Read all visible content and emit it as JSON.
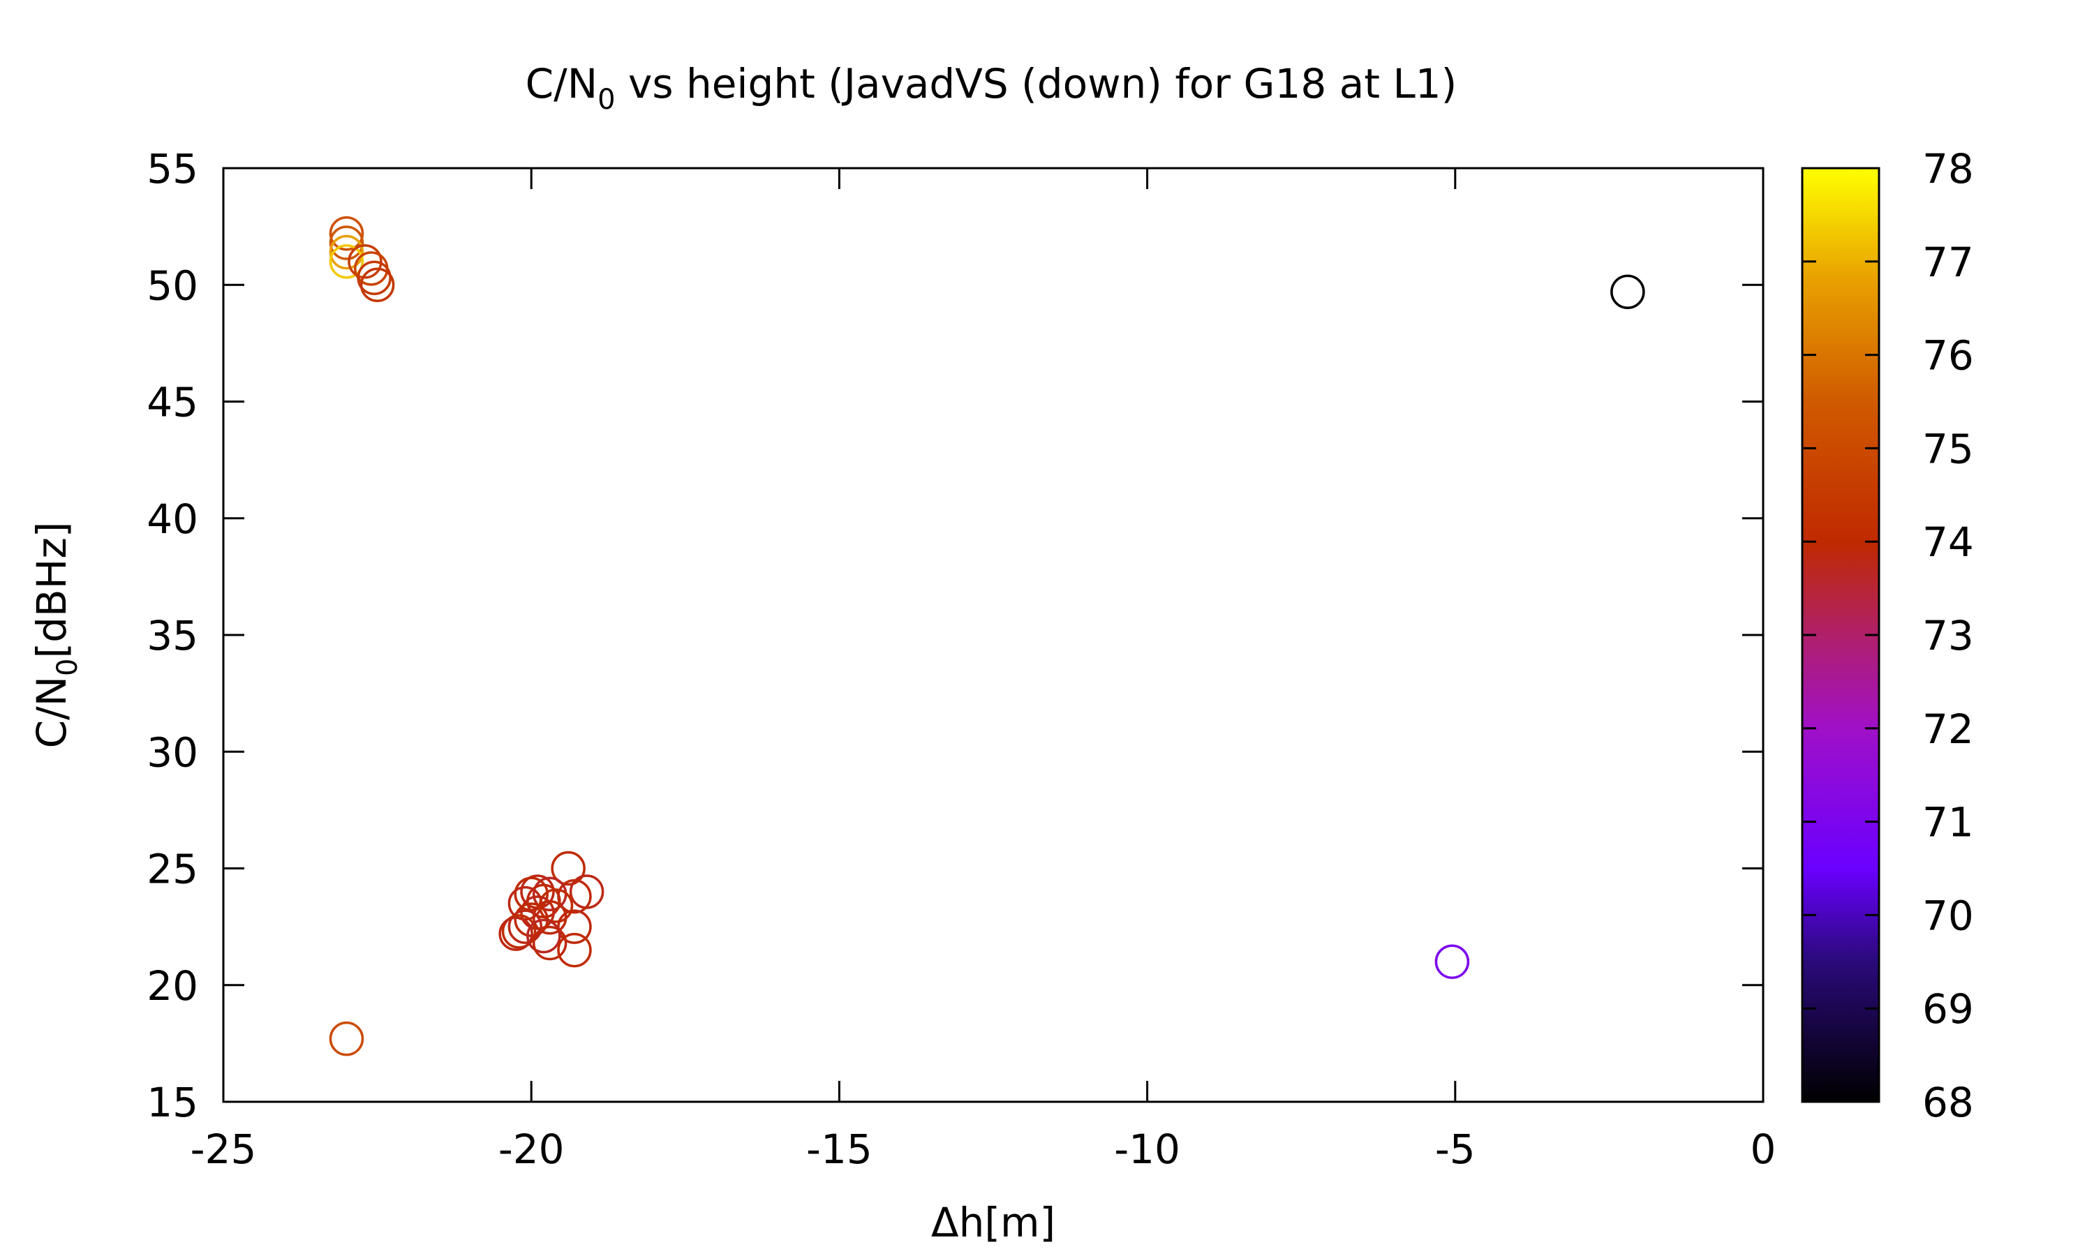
{
  "chart_data": {
    "type": "scatter",
    "title": {
      "before_sub": "C/N",
      "sub": "0",
      "after_sub": " vs height (JavadVS (down) for G18 at L1)"
    },
    "xlabel": "Δh[m]",
    "ylabel": {
      "before_sub": "C/N",
      "sub": "0",
      "after_sub": "[dBHz]"
    },
    "xlim": [
      -25,
      0
    ],
    "ylim": [
      15,
      55
    ],
    "xticks": [
      -25,
      -20,
      -15,
      -10,
      -5,
      0
    ],
    "yticks": [
      15,
      20,
      25,
      30,
      35,
      40,
      45,
      50,
      55
    ],
    "xtick_labels": [
      "-25",
      "-20",
      "-15",
      "-10",
      "-5",
      "0"
    ],
    "ytick_labels": [
      "15",
      "20",
      "25",
      "30",
      "35",
      "40",
      "45",
      "50",
      "55"
    ],
    "grid": false,
    "marker": "open-circle",
    "colorbar": {
      "min": 68,
      "max": 78,
      "ticks": [
        68,
        69,
        70,
        71,
        72,
        73,
        74,
        75,
        76,
        77,
        78
      ],
      "tick_labels": [
        "68",
        "69",
        "70",
        "71",
        "72",
        "73",
        "74",
        "75",
        "76",
        "77",
        "78"
      ],
      "palette": "black-blue-purple-red-orange-yellow"
    },
    "points": [
      {
        "x": -23.0,
        "y": 52.2,
        "c": 75.2
      },
      {
        "x": -23.0,
        "y": 51.8,
        "c": 75.4
      },
      {
        "x": -23.0,
        "y": 51.4,
        "c": 76.8
      },
      {
        "x": -23.0,
        "y": 51.0,
        "c": 77.3
      },
      {
        "x": -22.7,
        "y": 51.0,
        "c": 74.6
      },
      {
        "x": -22.6,
        "y": 50.7,
        "c": 74.8
      },
      {
        "x": -22.55,
        "y": 50.3,
        "c": 74.5
      },
      {
        "x": -22.5,
        "y": 50.0,
        "c": 74.4
      },
      {
        "x": -2.2,
        "y": 49.7,
        "c": 68.0
      },
      {
        "x": -19.4,
        "y": 25.0,
        "c": 74.0
      },
      {
        "x": -19.1,
        "y": 24.0,
        "c": 73.8
      },
      {
        "x": -19.3,
        "y": 23.8,
        "c": 73.9
      },
      {
        "x": -19.9,
        "y": 24.0,
        "c": 73.8
      },
      {
        "x": -20.0,
        "y": 23.9,
        "c": 74.0
      },
      {
        "x": -19.7,
        "y": 23.9,
        "c": 73.7
      },
      {
        "x": -19.8,
        "y": 23.6,
        "c": 73.9
      },
      {
        "x": -20.1,
        "y": 23.5,
        "c": 73.8
      },
      {
        "x": -19.6,
        "y": 23.4,
        "c": 74.1
      },
      {
        "x": -19.9,
        "y": 23.1,
        "c": 73.8
      },
      {
        "x": -19.7,
        "y": 22.9,
        "c": 73.9
      },
      {
        "x": -20.0,
        "y": 22.8,
        "c": 74.0
      },
      {
        "x": -20.1,
        "y": 22.5,
        "c": 73.8
      },
      {
        "x": -19.3,
        "y": 22.5,
        "c": 73.9
      },
      {
        "x": -20.2,
        "y": 22.3,
        "c": 74.1
      },
      {
        "x": -20.25,
        "y": 22.2,
        "c": 73.8
      },
      {
        "x": -19.8,
        "y": 22.1,
        "c": 73.7
      },
      {
        "x": -19.7,
        "y": 21.8,
        "c": 73.9
      },
      {
        "x": -19.3,
        "y": 21.5,
        "c": 74.0
      },
      {
        "x": -5.05,
        "y": 21.0,
        "c": 71.0
      },
      {
        "x": -23.0,
        "y": 17.7,
        "c": 75.0
      }
    ]
  }
}
